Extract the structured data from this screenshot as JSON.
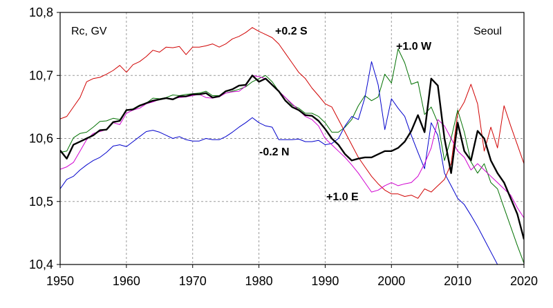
{
  "chart_data": {
    "type": "line",
    "title": "",
    "xlabel": "",
    "ylabel": "",
    "xlim": [
      1950,
      2020
    ],
    "ylim": [
      10.4,
      10.8
    ],
    "grid": true,
    "x_ticks": [
      1950,
      1960,
      1970,
      1980,
      1990,
      2000,
      2010,
      2020
    ],
    "y_ticks": [
      10.4,
      10.5,
      10.6,
      10.7,
      10.8
    ],
    "x_tick_labels": [
      "1950",
      "1960",
      "1970",
      "1980",
      "1990",
      "2000",
      "2010",
      "2020"
    ],
    "y_tick_labels": [
      "10,4",
      "10,5",
      "10,6",
      "10,7",
      "10,8"
    ],
    "annotations": {
      "units": "Rc, GV",
      "location": "Seoul",
      "s": "+0.2  S",
      "w": "+1.0  W",
      "n": "-0.2  N",
      "e": "+1.0  E"
    },
    "colors": {
      "main": "#000000",
      "s": "#d00000",
      "w": "#007000",
      "n": "#0000cc",
      "e": "#d000d0",
      "grid": "#9a9a9a",
      "axis": "#000000"
    },
    "series": [
      {
        "id": "s",
        "x": [
          1950,
          1951,
          1952,
          1953,
          1954,
          1955,
          1956,
          1957,
          1958,
          1959,
          1960,
          1961,
          1962,
          1963,
          1964,
          1965,
          1966,
          1967,
          1968,
          1969,
          1970,
          1971,
          1972,
          1973,
          1974,
          1975,
          1976,
          1977,
          1978,
          1979,
          1980,
          1981,
          1982,
          1983,
          1984,
          1985,
          1986,
          1987,
          1988,
          1989,
          1990,
          1991,
          1992,
          1993,
          1994,
          1995,
          1996,
          1997,
          1998,
          1999,
          2000,
          2001,
          2002,
          2003,
          2004,
          2005,
          2006,
          2007,
          2008,
          2009,
          2010,
          2011,
          2012,
          2013,
          2014,
          2015,
          2016,
          2017,
          2018,
          2019,
          2020
        ],
        "values": [
          10.631,
          10.635,
          10.65,
          10.665,
          10.69,
          10.695,
          10.697,
          10.702,
          10.708,
          10.716,
          10.705,
          10.717,
          10.722,
          10.73,
          10.74,
          10.737,
          10.745,
          10.744,
          10.746,
          10.733,
          10.745,
          10.745,
          10.747,
          10.75,
          10.745,
          10.75,
          10.758,
          10.762,
          10.768,
          10.776,
          10.77,
          10.765,
          10.76,
          10.75,
          10.735,
          10.72,
          10.705,
          10.695,
          10.68,
          10.668,
          10.655,
          10.65,
          10.63,
          10.61,
          10.59,
          10.57,
          10.555,
          10.54,
          10.528,
          10.518,
          10.512,
          10.512,
          10.508,
          10.51,
          10.505,
          10.52,
          10.515,
          10.525,
          10.535,
          10.56,
          10.64,
          10.658,
          10.686,
          10.655,
          10.58,
          10.618,
          10.585,
          10.652,
          10.62,
          10.59,
          10.56
        ]
      },
      {
        "id": "w",
        "x": [
          1950,
          1951,
          1952,
          1953,
          1954,
          1955,
          1956,
          1957,
          1958,
          1959,
          1960,
          1961,
          1962,
          1963,
          1964,
          1965,
          1966,
          1967,
          1968,
          1969,
          1970,
          1971,
          1972,
          1973,
          1974,
          1975,
          1976,
          1977,
          1978,
          1979,
          1980,
          1981,
          1982,
          1983,
          1984,
          1985,
          1986,
          1987,
          1988,
          1989,
          1990,
          1991,
          1992,
          1993,
          1994,
          1995,
          1996,
          1997,
          1998,
          1999,
          2000,
          2001,
          2002,
          2003,
          2004,
          2005,
          2006,
          2007,
          2008,
          2009,
          2010,
          2011,
          2012,
          2013,
          2014,
          2015,
          2016,
          2017,
          2018,
          2019,
          2020
        ],
        "values": [
          10.578,
          10.58,
          10.601,
          10.608,
          10.61,
          10.618,
          10.627,
          10.628,
          10.632,
          10.63,
          10.645,
          10.647,
          10.653,
          10.656,
          10.664,
          10.663,
          10.665,
          10.669,
          10.668,
          10.67,
          10.671,
          10.672,
          10.675,
          10.668,
          10.668,
          10.672,
          10.675,
          10.678,
          10.682,
          10.69,
          10.695,
          10.7,
          10.69,
          10.675,
          10.665,
          10.653,
          10.648,
          10.64,
          10.64,
          10.635,
          10.625,
          10.61,
          10.61,
          10.618,
          10.63,
          10.652,
          10.668,
          10.66,
          10.666,
          10.702,
          10.688,
          10.742,
          10.72,
          10.686,
          10.69,
          10.638,
          10.65,
          10.625,
          10.565,
          10.6,
          10.645,
          10.61,
          10.563,
          10.545,
          10.56,
          10.53,
          10.52,
          10.49,
          10.46,
          10.43,
          10.402
        ]
      },
      {
        "id": "n",
        "x": [
          1950,
          1951,
          1952,
          1953,
          1954,
          1955,
          1956,
          1957,
          1958,
          1959,
          1960,
          1961,
          1962,
          1963,
          1964,
          1965,
          1966,
          1967,
          1968,
          1969,
          1970,
          1971,
          1972,
          1973,
          1974,
          1975,
          1976,
          1977,
          1978,
          1979,
          1980,
          1981,
          1982,
          1983,
          1984,
          1985,
          1986,
          1987,
          1988,
          1989,
          1990,
          1991,
          1992,
          1993,
          1994,
          1995,
          1996,
          1997,
          1998,
          1999,
          2000,
          2001,
          2002,
          2003,
          2004,
          2005,
          2006,
          2007,
          2008,
          2009,
          2010,
          2011,
          2012,
          2013,
          2014,
          2015,
          2016
        ],
        "values": [
          10.52,
          10.535,
          10.54,
          10.55,
          10.558,
          10.565,
          10.57,
          10.578,
          10.588,
          10.59,
          10.587,
          10.595,
          10.603,
          10.611,
          10.613,
          10.61,
          10.605,
          10.6,
          10.603,
          10.598,
          10.596,
          10.596,
          10.6,
          10.598,
          10.598,
          10.603,
          10.61,
          10.618,
          10.625,
          10.633,
          10.625,
          10.62,
          10.618,
          10.598,
          10.598,
          10.598,
          10.599,
          10.595,
          10.595,
          10.597,
          10.59,
          10.592,
          10.6,
          10.62,
          10.635,
          10.63,
          10.665,
          10.722,
          10.685,
          10.614,
          10.663,
          10.648,
          10.635,
          10.605,
          10.578,
          10.552,
          10.625,
          10.605,
          10.545,
          10.525,
          10.505,
          10.495,
          10.478,
          10.46,
          10.44,
          10.42,
          10.4
        ]
      },
      {
        "id": "e",
        "x": [
          1950,
          1951,
          1952,
          1953,
          1954,
          1955,
          1956,
          1957,
          1958,
          1959,
          1960,
          1961,
          1962,
          1963,
          1964,
          1965,
          1966,
          1967,
          1968,
          1969,
          1970,
          1971,
          1972,
          1973,
          1974,
          1975,
          1976,
          1977,
          1978,
          1979,
          1980,
          1981,
          1982,
          1983,
          1984,
          1985,
          1986,
          1987,
          1988,
          1989,
          1990,
          1991,
          1992,
          1993,
          1994,
          1995,
          1996,
          1997,
          1998,
          1999,
          2000,
          2001,
          2002,
          2003,
          2004,
          2005,
          2006,
          2007,
          2008,
          2009,
          2010,
          2011,
          2012,
          2013,
          2014,
          2015,
          2016,
          2017,
          2018,
          2019,
          2020
        ],
        "values": [
          10.551,
          10.555,
          10.562,
          10.58,
          10.598,
          10.608,
          10.611,
          10.614,
          10.625,
          10.622,
          10.64,
          10.645,
          10.648,
          10.655,
          10.658,
          10.662,
          10.664,
          10.663,
          10.665,
          10.666,
          10.668,
          10.67,
          10.665,
          10.664,
          10.666,
          10.672,
          10.674,
          10.675,
          10.683,
          10.7,
          10.698,
          10.695,
          10.685,
          10.675,
          10.665,
          10.655,
          10.645,
          10.635,
          10.63,
          10.62,
          10.6,
          10.59,
          10.58,
          10.57,
          10.558,
          10.545,
          10.53,
          10.515,
          10.518,
          10.525,
          10.53,
          10.525,
          10.528,
          10.53,
          10.54,
          10.56,
          10.585,
          10.63,
          10.62,
          10.6,
          10.58,
          10.57,
          10.55,
          10.56,
          10.55,
          10.54,
          10.53,
          10.52,
          10.51,
          10.49,
          10.474
        ]
      },
      {
        "id": "main",
        "x": [
          1950,
          1951,
          1952,
          1953,
          1954,
          1955,
          1956,
          1957,
          1958,
          1959,
          1960,
          1961,
          1962,
          1963,
          1964,
          1965,
          1966,
          1967,
          1968,
          1969,
          1970,
          1971,
          1972,
          1973,
          1974,
          1975,
          1976,
          1977,
          1978,
          1979,
          1980,
          1981,
          1982,
          1983,
          1984,
          1985,
          1986,
          1987,
          1988,
          1989,
          1990,
          1991,
          1992,
          1993,
          1994,
          1995,
          1996,
          1997,
          1998,
          1999,
          2000,
          2001,
          2002,
          2003,
          2004,
          2005,
          2006,
          2007,
          2008,
          2009,
          2010,
          2011,
          2012,
          2013,
          2014,
          2015,
          2016,
          2017,
          2018,
          2019,
          2020
        ],
        "values": [
          10.581,
          10.568,
          10.59,
          10.595,
          10.6,
          10.605,
          10.613,
          10.614,
          10.626,
          10.628,
          10.645,
          10.646,
          10.652,
          10.656,
          10.66,
          10.662,
          10.664,
          10.662,
          10.667,
          10.667,
          10.67,
          10.67,
          10.672,
          10.665,
          10.667,
          10.675,
          10.678,
          10.684,
          10.685,
          10.7,
          10.69,
          10.695,
          10.685,
          10.675,
          10.66,
          10.65,
          10.645,
          10.637,
          10.636,
          10.628,
          10.615,
          10.6,
          10.59,
          10.575,
          10.565,
          10.568,
          10.57,
          10.57,
          10.575,
          10.58,
          10.58,
          10.585,
          10.595,
          10.612,
          10.637,
          10.61,
          10.695,
          10.684,
          10.6,
          10.545,
          10.625,
          10.58,
          10.565,
          10.612,
          10.6,
          10.565,
          10.545,
          10.53,
          10.505,
          10.48,
          10.44
        ]
      }
    ]
  }
}
